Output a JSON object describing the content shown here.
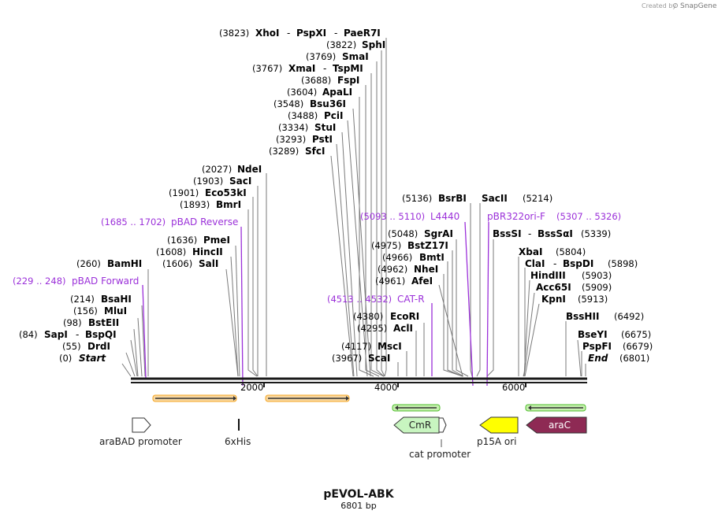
{
  "credit": {
    "text": "Created by",
    "brand": "SnapGene"
  },
  "map": {
    "title": "pEVOL-ABK",
    "subtitle": "6801 bp",
    "axis_ticks": [
      "2000",
      "4000",
      "6000"
    ]
  },
  "left_sites": [
    {
      "pos": "(3823)",
      "name": "XhoI",
      "name2": "PspXI",
      "name3": "PaeR7I"
    },
    {
      "pos": "(3822)",
      "name": "SphI"
    },
    {
      "pos": "(3769)",
      "name": "SmaI"
    },
    {
      "pos": "(3767)",
      "name": "XmaI",
      "name2": "TspMI"
    },
    {
      "pos": "(3688)",
      "name": "FspI"
    },
    {
      "pos": "(3604)",
      "name": "ApaLI"
    },
    {
      "pos": "(3548)",
      "name": "Bsu36I"
    },
    {
      "pos": "(3488)",
      "name": "PciI"
    },
    {
      "pos": "(3334)",
      "name": "StuI"
    },
    {
      "pos": "(3293)",
      "name": "PstI"
    },
    {
      "pos": "(3289)",
      "name": "SfcI"
    },
    {
      "pos": "(2027)",
      "name": "NdeI"
    },
    {
      "pos": "(1903)",
      "name": "SacI"
    },
    {
      "pos": "(1901)",
      "name": "Eco53kI"
    },
    {
      "pos": "(1893)",
      "name": "BmrI"
    },
    {
      "pos": "(1636)",
      "name": "PmeI"
    },
    {
      "pos": "(1608)",
      "name": "HincII"
    },
    {
      "pos": "(1606)",
      "name": "SalI"
    },
    {
      "pos": "(260)",
      "name": "BamHI"
    },
    {
      "pos": "(214)",
      "name": "BsaHI"
    },
    {
      "pos": "(156)",
      "name": "MluI"
    },
    {
      "pos": "(98)",
      "name": "BstEII"
    },
    {
      "pos": "(84)",
      "name": "SapI",
      "name2": "BspQI"
    },
    {
      "pos": "(55)",
      "name": "DrdI"
    },
    {
      "pos": "(0)",
      "name": "Start"
    },
    {
      "pos": "(4380)",
      "name": "EcoRI"
    },
    {
      "pos": "(4295)",
      "name": "AclI"
    },
    {
      "pos": "(4117)",
      "name": "MscI"
    },
    {
      "pos": "(3967)",
      "name": "ScaI"
    },
    {
      "pos": "(5136)",
      "name": "BsrBI"
    },
    {
      "pos": "(5048)",
      "name": "SgrAI"
    },
    {
      "pos": "(4975)",
      "name": "BstZ17I"
    },
    {
      "pos": "(4966)",
      "name": "BmtI"
    },
    {
      "pos": "(4962)",
      "name": "NheI"
    },
    {
      "pos": "(4961)",
      "name": "AfeI"
    }
  ],
  "right_sites": [
    {
      "name": "SacII",
      "pos": "(5214)"
    },
    {
      "name": "BssSI",
      "name2": "BssSαI",
      "pos": "(5339)"
    },
    {
      "name": "XbaI",
      "pos": "(5804)"
    },
    {
      "name": "ClaI",
      "name2": "BspDI",
      "pos": "(5898)"
    },
    {
      "name": "HindIII",
      "pos": "(5903)"
    },
    {
      "name": "Acc65I",
      "pos": "(5909)"
    },
    {
      "name": "KpnI",
      "pos": "(5913)"
    },
    {
      "name": "BssHII",
      "pos": "(6492)"
    },
    {
      "name": "BseYI",
      "pos": "(6675)"
    },
    {
      "name": "PspFI",
      "pos": "(6679)"
    },
    {
      "name": "End",
      "pos": "(6801)"
    }
  ],
  "primers": [
    {
      "range": "(1685 .. 1702)",
      "name": "pBAD Reverse"
    },
    {
      "range": "(229 .. 248)",
      "name": "pBAD Forward"
    },
    {
      "range": "(5093 .. 5110)",
      "name": "L4440"
    },
    {
      "name": "pBR322ori-F",
      "range": "(5307 .. 5326)"
    },
    {
      "range": "(4513 .. 4532)",
      "name": "CAT-R"
    }
  ],
  "features": [
    {
      "label": "araBAD promoter"
    },
    {
      "label": "6xHis"
    },
    {
      "label": "CmR"
    },
    {
      "label": "cat promoter"
    },
    {
      "label": "p15A ori"
    },
    {
      "label": "araC"
    }
  ],
  "colors": {
    "purple": "#9b30d9",
    "orange": "#f5a623",
    "green": "#4dbd2a",
    "cmr": "#c8f5c0",
    "p15a": "#ffff00",
    "arac": "#8e2a54"
  }
}
